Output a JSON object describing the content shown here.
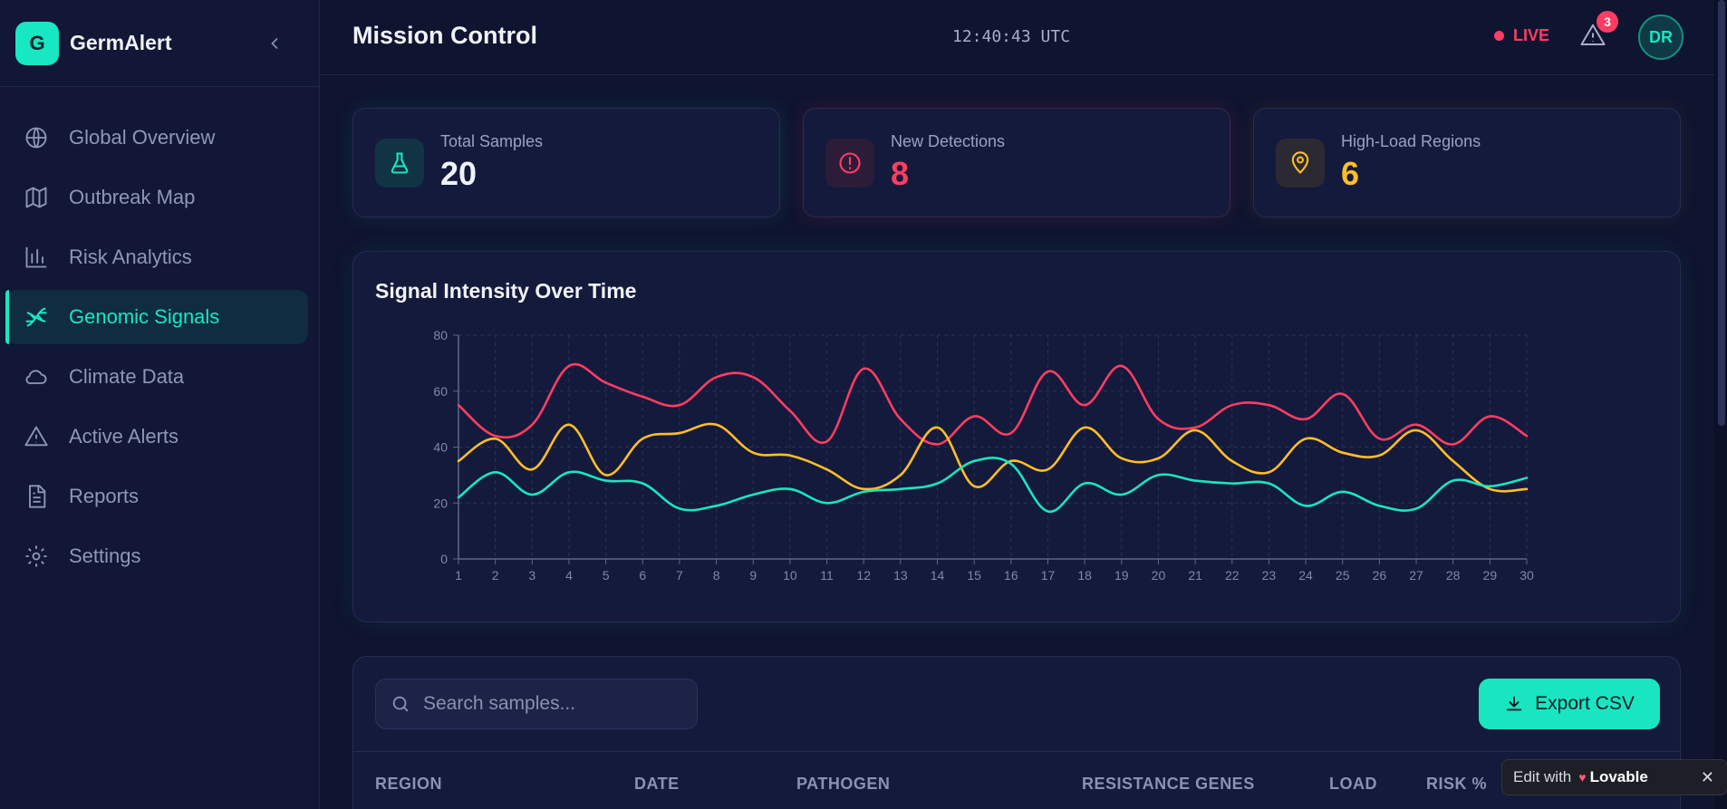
{
  "app": {
    "name": "GermAlert",
    "logo_letter": "G"
  },
  "header": {
    "title": "Mission Control",
    "clock": "12:40:43 UTC",
    "live_label": "LIVE",
    "alert_count": "3",
    "avatar_initials": "DR"
  },
  "sidebar": {
    "items": [
      {
        "label": "Global Overview",
        "icon": "globe-icon"
      },
      {
        "label": "Outbreak Map",
        "icon": "map-icon"
      },
      {
        "label": "Risk Analytics",
        "icon": "bar-chart-icon"
      },
      {
        "label": "Genomic Signals",
        "icon": "dna-icon",
        "active": true
      },
      {
        "label": "Climate Data",
        "icon": "cloud-icon"
      },
      {
        "label": "Active Alerts",
        "icon": "warning-icon"
      },
      {
        "label": "Reports",
        "icon": "document-icon"
      },
      {
        "label": "Settings",
        "icon": "gear-icon"
      }
    ]
  },
  "stats": [
    {
      "label": "Total Samples",
      "value": "20",
      "color": "#19e6c0",
      "icon": "flask-icon"
    },
    {
      "label": "New Detections",
      "value": "8",
      "color": "#ff3d63",
      "icon": "alert-circle-icon"
    },
    {
      "label": "High-Load Regions",
      "value": "6",
      "color": "#ffbe28",
      "icon": "map-pin-icon"
    }
  ],
  "table": {
    "search_placeholder": "Search samples...",
    "export_label": "Export CSV",
    "columns": [
      "REGION",
      "DATE",
      "PATHOGEN",
      "RESISTANCE GENES",
      "LOAD",
      "RISK %"
    ]
  },
  "lovable": {
    "prefix": "Edit with",
    "brand": "Lovable"
  },
  "chart_data": {
    "type": "line",
    "title": "Signal Intensity Over Time",
    "xlabel": "",
    "ylabel": "",
    "ylim": [
      0,
      80
    ],
    "yticks": [
      0,
      20,
      40,
      60,
      80
    ],
    "x": [
      1,
      2,
      3,
      4,
      5,
      6,
      7,
      8,
      9,
      10,
      11,
      12,
      13,
      14,
      15,
      16,
      17,
      18,
      19,
      20,
      21,
      22,
      23,
      24,
      25,
      26,
      27,
      28,
      29,
      30
    ],
    "series": [
      {
        "name": "red",
        "color": "#ff3d63",
        "values": [
          55,
          44,
          48,
          69,
          63,
          58,
          55,
          65,
          65,
          53,
          42,
          68,
          50,
          41,
          51,
          45,
          67,
          55,
          69,
          50,
          47,
          55,
          55,
          50,
          59,
          43,
          48,
          41,
          51,
          44
        ]
      },
      {
        "name": "amber",
        "color": "#ffbe28",
        "values": [
          35,
          43,
          32,
          48,
          30,
          43,
          45,
          48,
          38,
          37,
          32,
          25,
          30,
          47,
          26,
          35,
          32,
          47,
          36,
          36,
          46,
          35,
          31,
          43,
          38,
          37,
          46,
          35,
          25,
          25
        ]
      },
      {
        "name": "teal",
        "color": "#19e6c0",
        "values": [
          22,
          31,
          23,
          31,
          28,
          27,
          18,
          19,
          23,
          25,
          20,
          24,
          25,
          27,
          35,
          34,
          17,
          27,
          23,
          30,
          28,
          27,
          27,
          19,
          24,
          19,
          18,
          28,
          26,
          29
        ]
      }
    ]
  }
}
